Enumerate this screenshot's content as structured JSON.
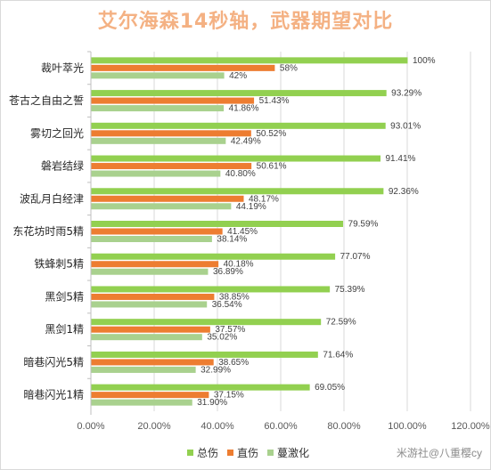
{
  "chart_data": {
    "type": "bar",
    "orientation": "horizontal",
    "title": "艾尔海森14秒轴，武器期望对比",
    "categories": [
      "裁叶萃光",
      "苍古之自由之誓",
      "雾切之回光",
      "磐岩结绿",
      "波乱月白经津",
      "东花坊时雨5精",
      "铁蜂刺5精",
      "黑剑5精",
      "黑剑1精",
      "暗巷闪光5精",
      "暗巷闪光1精"
    ],
    "series": [
      {
        "name": "总伤",
        "color": "#92d050",
        "values": [
          100,
          93.29,
          93.01,
          91.41,
          92.36,
          79.59,
          77.07,
          75.39,
          72.59,
          71.64,
          69.05
        ],
        "labels": [
          "100%",
          "93.29%",
          "93.01%",
          "91.41%",
          "92.36%",
          "79.59%",
          "77.07%",
          "75.39%",
          "72.59%",
          "71.64%",
          "69.05%"
        ]
      },
      {
        "name": "直伤",
        "color": "#ed7d31",
        "values": [
          58,
          51.43,
          50.52,
          50.61,
          48.17,
          41.45,
          40.18,
          38.85,
          37.57,
          38.65,
          37.15
        ],
        "labels": [
          "58%",
          "51.43%",
          "50.52%",
          "50.61%",
          "48.17%",
          "41.45%",
          "40.18%",
          "38.85%",
          "37.57%",
          "38.65%",
          "37.15%"
        ]
      },
      {
        "name": "蔓激化",
        "color": "#a9d18e",
        "values": [
          42,
          41.86,
          42.49,
          40.8,
          44.19,
          38.14,
          36.89,
          36.54,
          35.02,
          32.99,
          31.9
        ],
        "labels": [
          "42%",
          "41.86%",
          "42.49%",
          "40.80%",
          "44.19%",
          "38.14%",
          "36.89%",
          "36.54%",
          "35.02%",
          "32.99%",
          "31.90%"
        ]
      }
    ],
    "xlim": [
      0,
      120
    ],
    "xticks": [
      0,
      20,
      40,
      60,
      80,
      100,
      120
    ],
    "xtick_labels": [
      "0.00%",
      "20.00%",
      "40.00%",
      "60.00%",
      "80.00%",
      "100.00%",
      "120.00%"
    ],
    "grid": true,
    "legend_position": "bottom"
  },
  "watermark": "米游社@八重樱cy"
}
